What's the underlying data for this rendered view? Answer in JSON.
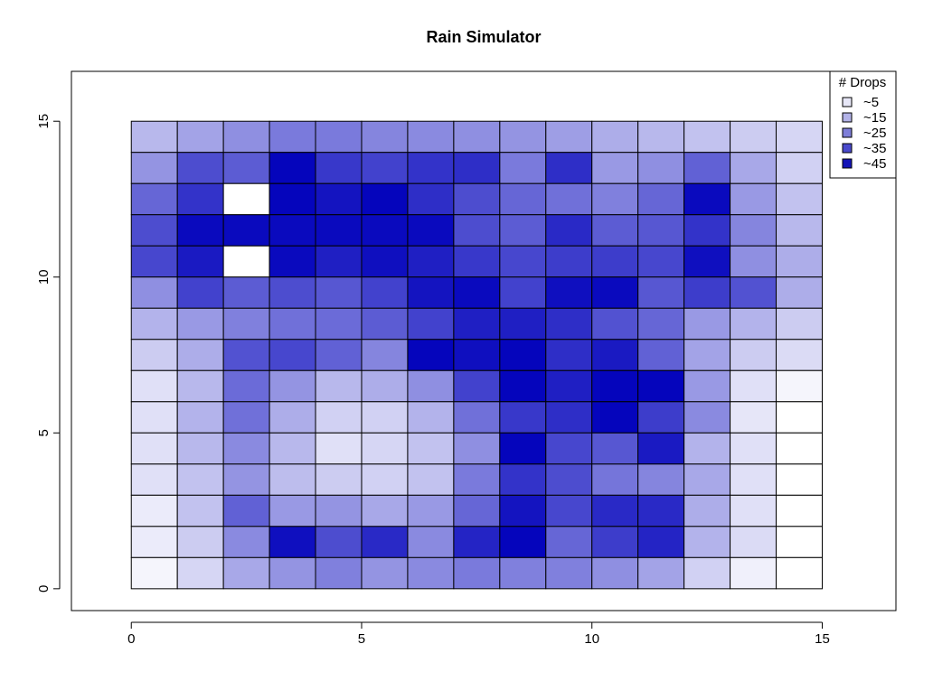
{
  "chart_data": {
    "type": "heatmap",
    "title": "Rain Simulator",
    "xlabel": "",
    "ylabel": "",
    "xlim": [
      -1.3,
      16.6
    ],
    "ylim": [
      -0.7,
      16.6
    ],
    "x_ticks": [
      0,
      5,
      10,
      15
    ],
    "y_ticks": [
      0,
      5,
      10,
      15
    ],
    "grid": false,
    "cell_size": 1,
    "rows_top_to_bottom": [
      [
        14,
        18,
        22,
        26,
        26,
        24,
        23,
        22,
        21,
        19,
        16,
        14,
        12,
        10,
        8
      ],
      [
        21,
        35,
        32,
        49,
        39,
        37,
        40,
        41,
        26,
        41,
        20,
        22,
        31,
        17,
        9
      ],
      [
        30,
        40,
        0,
        49,
        46,
        49,
        41,
        35,
        30,
        28,
        25,
        30,
        48,
        20,
        12
      ],
      [
        35,
        48,
        48,
        48,
        48,
        48,
        48,
        35,
        32,
        42,
        32,
        33,
        40,
        24,
        14
      ],
      [
        36,
        45,
        0,
        48,
        44,
        47,
        44,
        39,
        36,
        38,
        38,
        36,
        47,
        22,
        16
      ],
      [
        22,
        37,
        32,
        35,
        33,
        37,
        46,
        48,
        37,
        47,
        48,
        33,
        38,
        34,
        16
      ],
      [
        15,
        20,
        25,
        28,
        29,
        32,
        37,
        44,
        44,
        41,
        34,
        30,
        20,
        15,
        10
      ],
      [
        10,
        16,
        34,
        36,
        31,
        24,
        49,
        47,
        49,
        41,
        45,
        31,
        18,
        10,
        7
      ],
      [
        6,
        14,
        29,
        21,
        14,
        16,
        22,
        37,
        49,
        44,
        49,
        49,
        20,
        6,
        2
      ],
      [
        6,
        15,
        28,
        16,
        9,
        9,
        15,
        28,
        39,
        41,
        49,
        38,
        23,
        5,
        0
      ],
      [
        6,
        14,
        23,
        14,
        6,
        8,
        12,
        22,
        49,
        36,
        33,
        45,
        15,
        6,
        0
      ],
      [
        6,
        12,
        21,
        13,
        10,
        9,
        12,
        26,
        40,
        35,
        27,
        24,
        17,
        6,
        0
      ],
      [
        4,
        12,
        31,
        20,
        21,
        17,
        20,
        30,
        46,
        36,
        42,
        42,
        16,
        6,
        0
      ],
      [
        4,
        10,
        23,
        47,
        35,
        42,
        23,
        43,
        49,
        30,
        38,
        43,
        15,
        7,
        0
      ],
      [
        2,
        8,
        17,
        21,
        25,
        21,
        23,
        26,
        25,
        25,
        22,
        18,
        9,
        3,
        0
      ]
    ],
    "legend": {
      "title": "# Drops",
      "position": "top-right",
      "entries": [
        {
          "label": "~5",
          "color": "#e7e7f7"
        },
        {
          "label": "~15",
          "color": "#b3b3e8"
        },
        {
          "label": "~25",
          "color": "#7e7ed8"
        },
        {
          "label": "~35",
          "color": "#4a4acc"
        },
        {
          "label": "~45",
          "color": "#1313b8"
        }
      ]
    },
    "colors": {
      "max": "#0000bb",
      "min": "#ffffff",
      "max_value": 50
    }
  }
}
